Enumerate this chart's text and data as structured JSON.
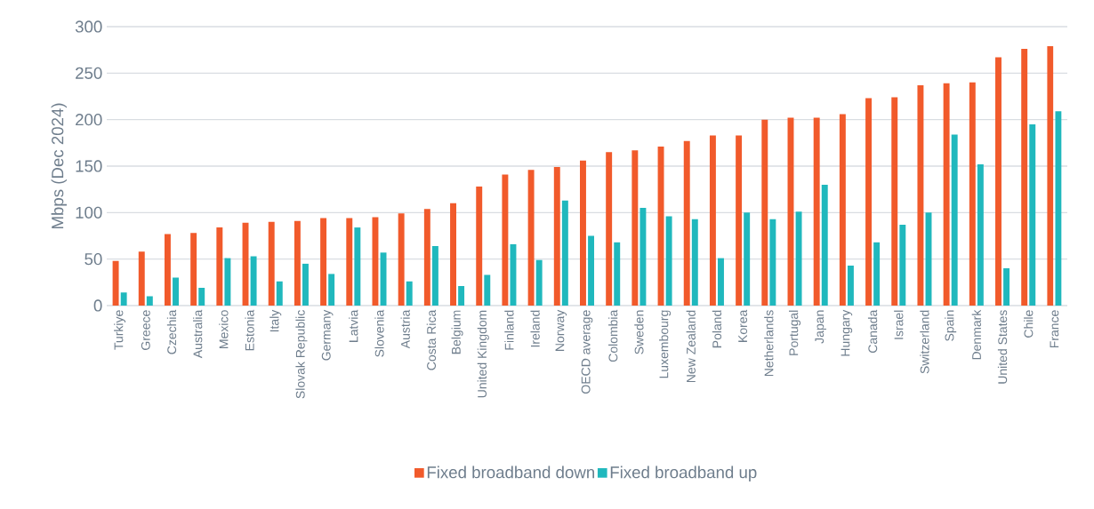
{
  "chart_data": {
    "type": "bar",
    "ylabel": "Mbps (Dec 2024)",
    "categories": [
      "Turkiye",
      "Greece",
      "Czechia",
      "Australia",
      "Mexico",
      "Estonia",
      "Italy",
      "Slovak Republic",
      "Germany",
      "Latvia",
      "Slovenia",
      "Austria",
      "Costa Rica",
      "Belgium",
      "United Kingdom",
      "Finland",
      "Ireland",
      "Norway",
      "OECD average",
      "Colombia",
      "Sweden",
      "Luxembourg",
      "New Zealand",
      "Poland",
      "Korea",
      "Netherlands",
      "Portugal",
      "Japan",
      "Hungary",
      "Canada",
      "Israel",
      "Switzerland",
      "Spain",
      "Denmark",
      "United States",
      "Chile",
      "France"
    ],
    "series": [
      {
        "name": "Fixed broadband down",
        "color": "#f15a2b",
        "values": [
          48,
          58,
          77,
          78,
          84,
          89,
          90,
          91,
          94,
          94,
          95,
          99,
          104,
          110,
          128,
          141,
          146,
          149,
          156,
          165,
          167,
          171,
          177,
          183,
          183,
          200,
          202,
          202,
          206,
          223,
          224,
          237,
          239,
          240,
          267,
          276,
          279
        ]
      },
      {
        "name": "Fixed broadband up",
        "color": "#20b8bd",
        "values": [
          14,
          10,
          30,
          19,
          51,
          53,
          26,
          45,
          34,
          84,
          57,
          26,
          64,
          21,
          33,
          66,
          49,
          113,
          75,
          68,
          105,
          96,
          93,
          51,
          100,
          93,
          101,
          130,
          43,
          68,
          87,
          100,
          184,
          152,
          40,
          195,
          209
        ]
      }
    ],
    "ylim": [
      0,
      300
    ],
    "yticks": [
      0,
      50,
      100,
      150,
      200,
      250,
      300
    ],
    "grid": "y",
    "legend": "bottom"
  }
}
